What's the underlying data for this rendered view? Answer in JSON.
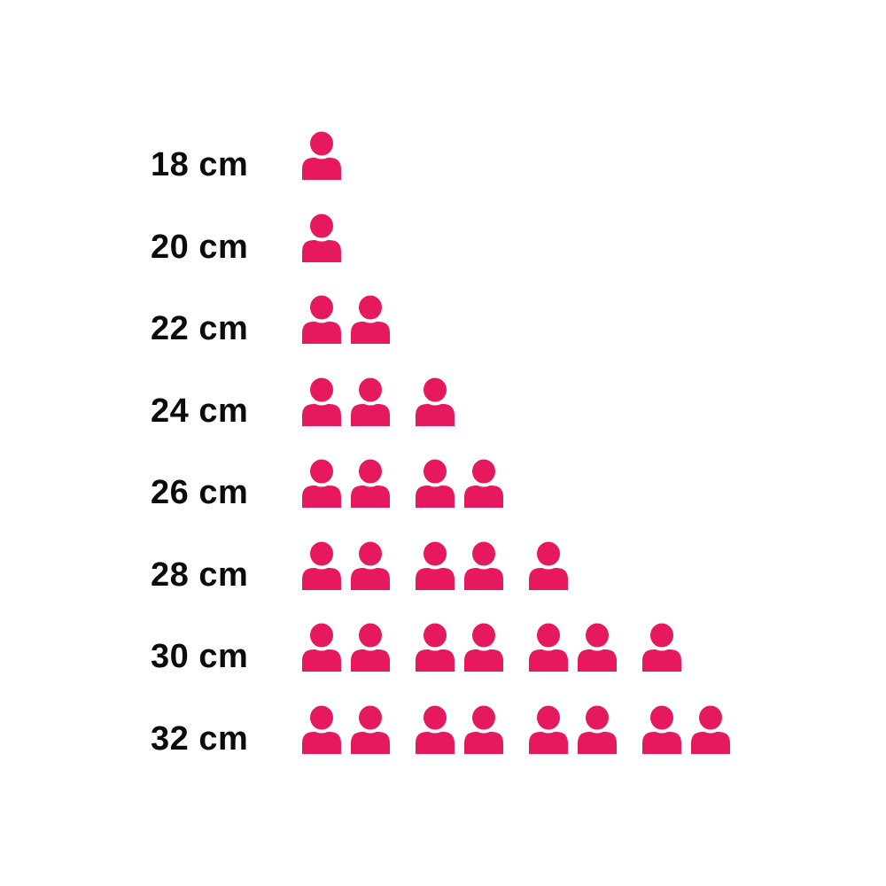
{
  "page": {
    "background_color": "#ffffff",
    "text_color": "#0b0b0b"
  },
  "chart_data": {
    "type": "pictogram",
    "orientation": "horizontal",
    "title": "",
    "categories": [
      "18 cm",
      "20 cm",
      "22 cm",
      "24 cm",
      "26 cm",
      "28 cm",
      "30 cm",
      "32 cm"
    ],
    "values": [
      1,
      1,
      2,
      3,
      4,
      5,
      7,
      8
    ],
    "icon": "person-icon",
    "icon_unit": 1,
    "icon_group_size": 2,
    "icon_color": "#E6195F",
    "label_color": "#0b0b0b",
    "xlim": [
      0,
      8
    ],
    "grid": false,
    "legend": false
  }
}
